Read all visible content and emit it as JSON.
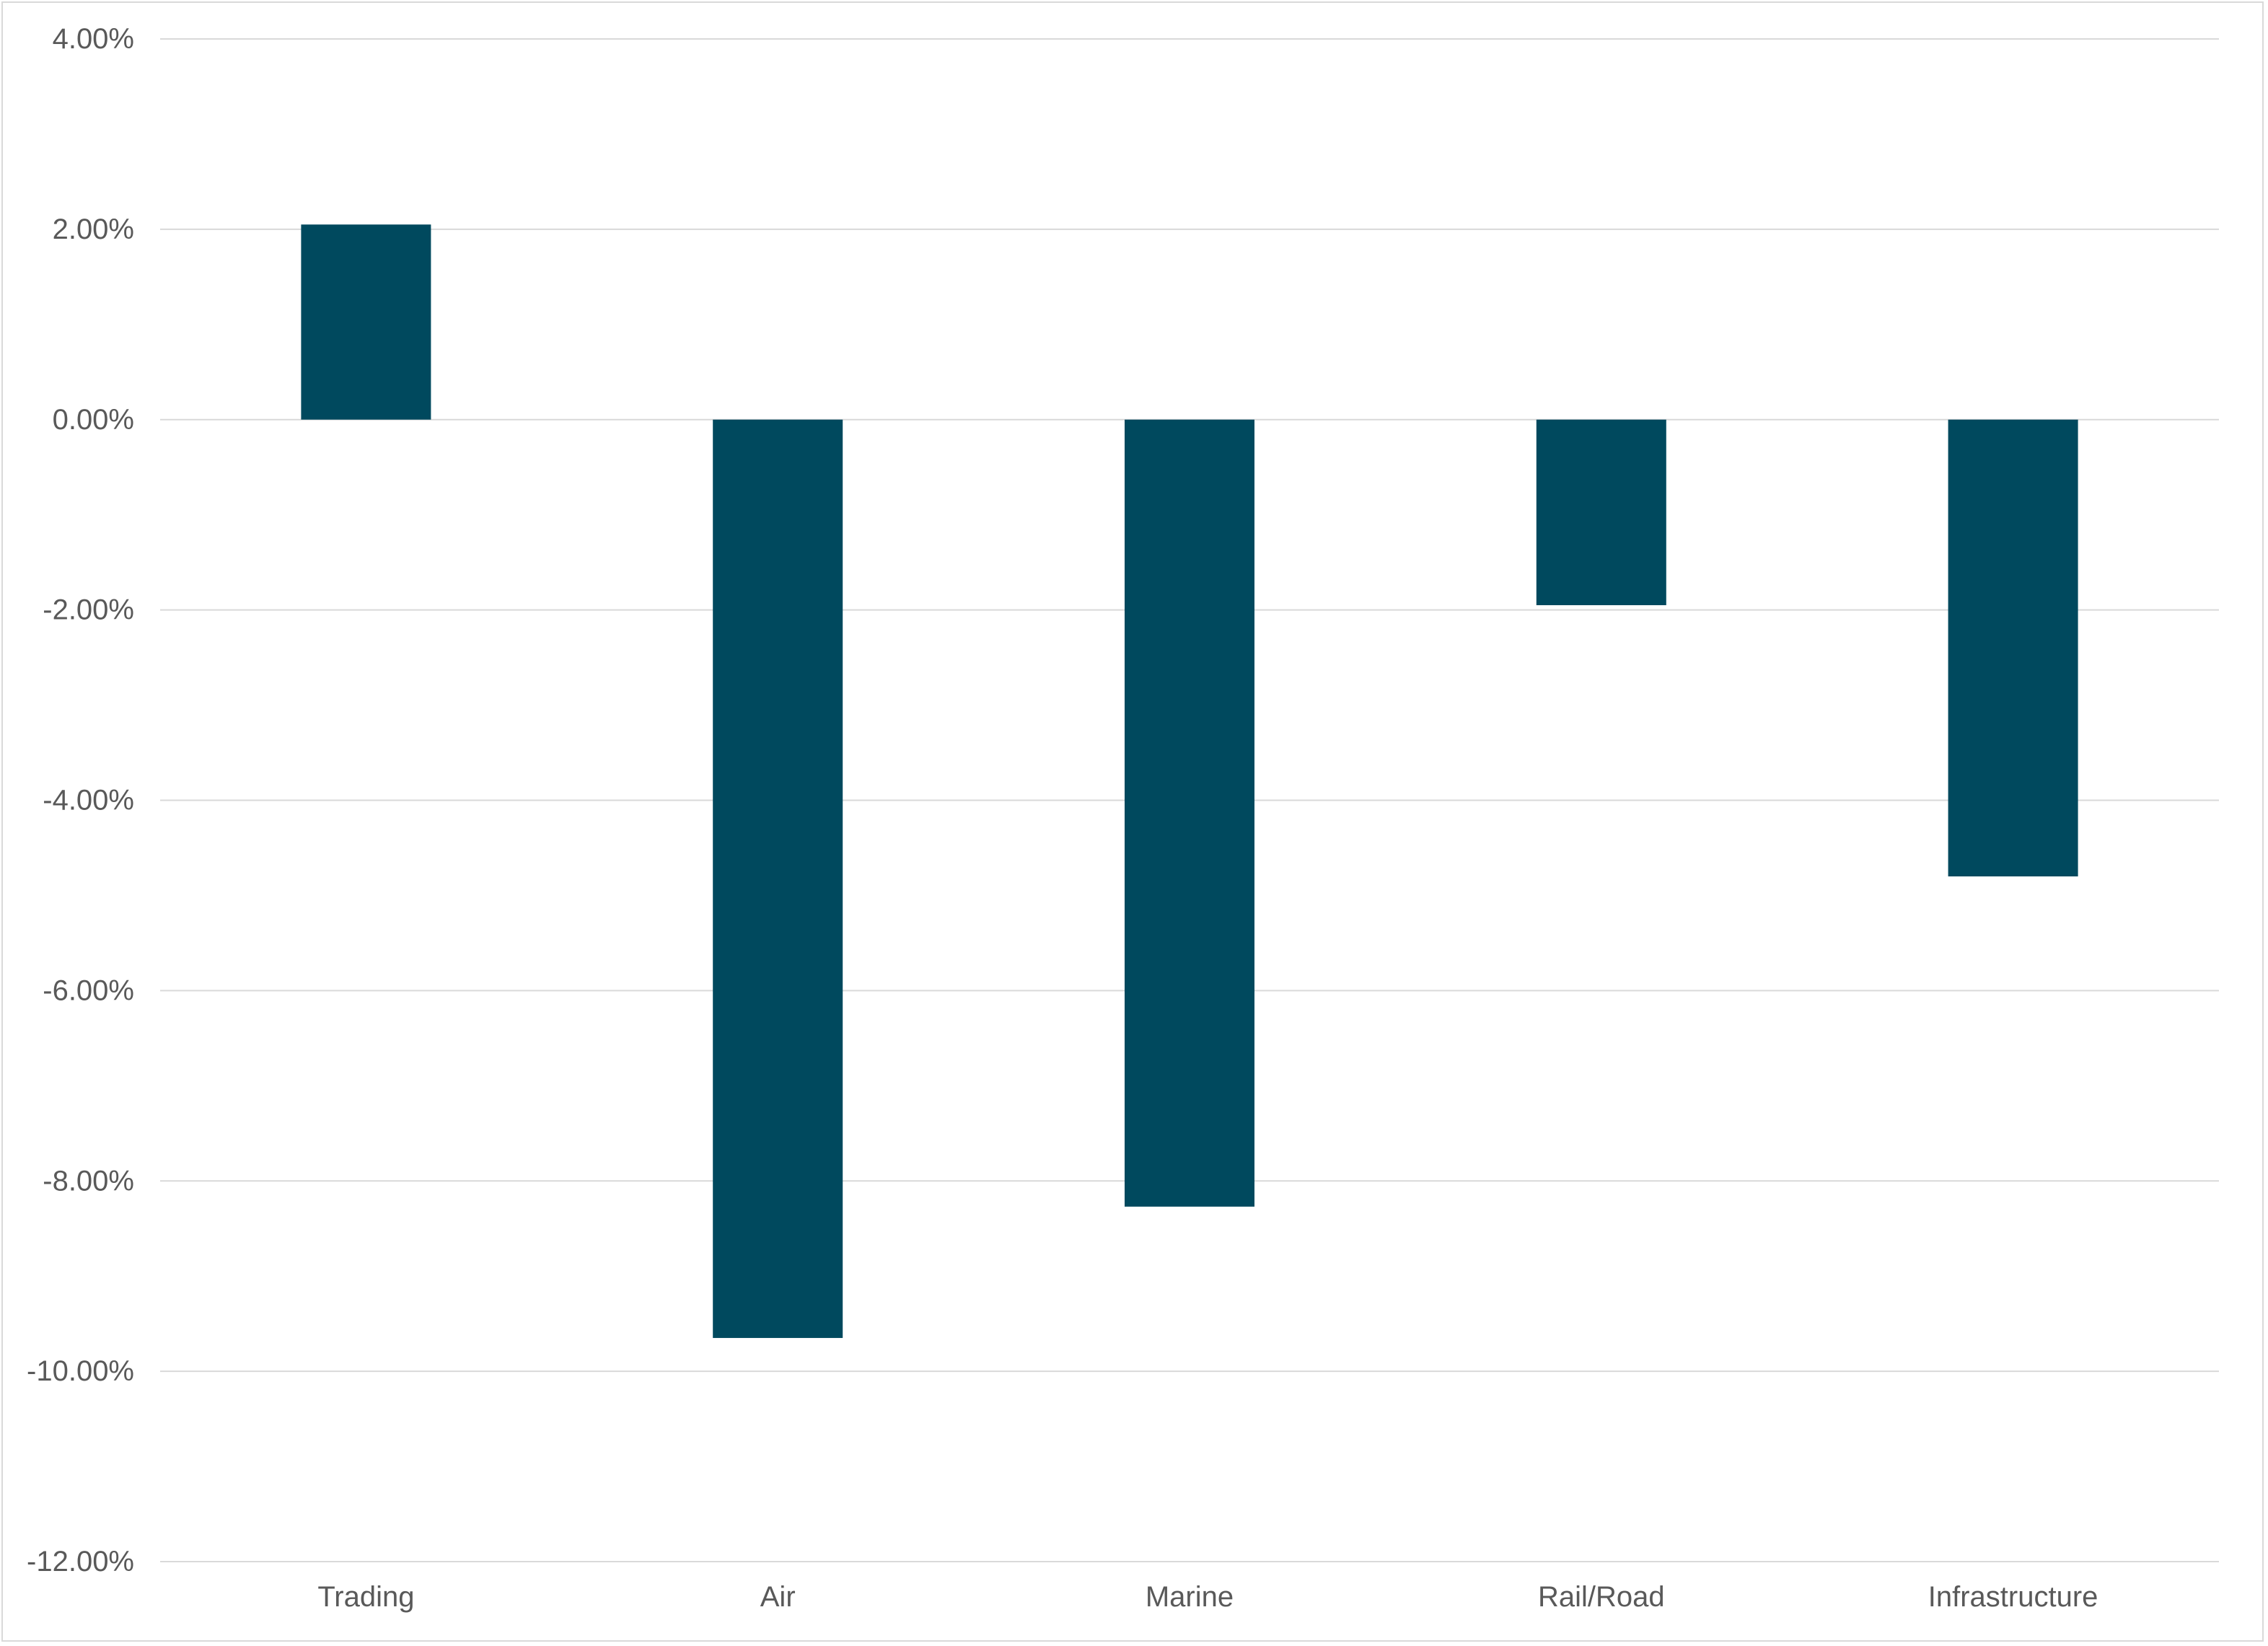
{
  "chart_data": {
    "type": "bar",
    "categories": [
      "Trading",
      "Air",
      "Marine",
      "Rail/Road",
      "Infrastructure"
    ],
    "series": [
      {
        "values": [
          2.05,
          -9.65,
          -8.27,
          -1.95,
          -4.8
        ],
        "color": "#00495e"
      }
    ],
    "ylim": [
      -12,
      4
    ],
    "yticks": [
      4,
      2,
      0,
      -2,
      -4,
      -6,
      -8,
      -10,
      -12
    ],
    "ytick_labels": [
      "4.00%",
      "2.00%",
      "0.00%",
      "-2.00%",
      "-4.00%",
      "-6.00%",
      "-8.00%",
      "-10.00%",
      "-12.00%"
    ],
    "grid": true,
    "legend": "none",
    "gridline_color": "#d9d9d9",
    "text_color": "#595959"
  }
}
